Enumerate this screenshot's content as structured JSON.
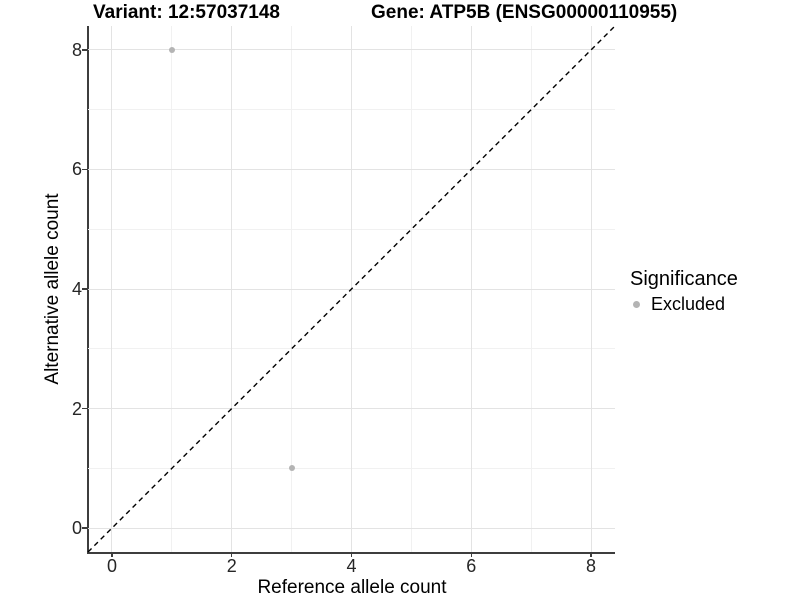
{
  "header": {
    "variant_title": "Variant: 12:57037148",
    "gene_title": "Gene: ATP5B (ENSG00000110955)"
  },
  "chart_data": {
    "type": "scatter",
    "title": "Variant: 12:57037148    Gene: ATP5B (ENSG00000110955)",
    "xlabel": "Reference allele count",
    "ylabel": "Alternative allele count",
    "xlim": [
      -0.4,
      8.4
    ],
    "ylim": [
      -0.4,
      8.4
    ],
    "x_ticks": [
      0,
      2,
      4,
      6,
      8
    ],
    "y_ticks": [
      0,
      2,
      4,
      6,
      8
    ],
    "x_minor_ticks": [
      1,
      3,
      5,
      7
    ],
    "y_minor_ticks": [
      1,
      3,
      5,
      7
    ],
    "grid": "major-and-minor",
    "reference_line": {
      "type": "identity",
      "slope": 1,
      "intercept": 0,
      "style": "dashed",
      "color": "#000000"
    },
    "series": [
      {
        "name": "Excluded",
        "color": "#b4b4b4",
        "points": [
          {
            "x": 1,
            "y": 8
          },
          {
            "x": 3,
            "y": 1
          }
        ]
      }
    ],
    "legend": {
      "title": "Significance",
      "position": "right",
      "entries": [
        {
          "label": "Excluded",
          "color": "#b4b4b4",
          "marker": "circle"
        }
      ]
    }
  },
  "colors": {
    "background": "#ffffff",
    "point_gray": "#b4b4b4",
    "axis_line": "#3d3d3d",
    "grid_major": "#e3e3e3",
    "grid_minor": "#f1f1f1",
    "reference_line": "#000000",
    "text": "#000000"
  }
}
